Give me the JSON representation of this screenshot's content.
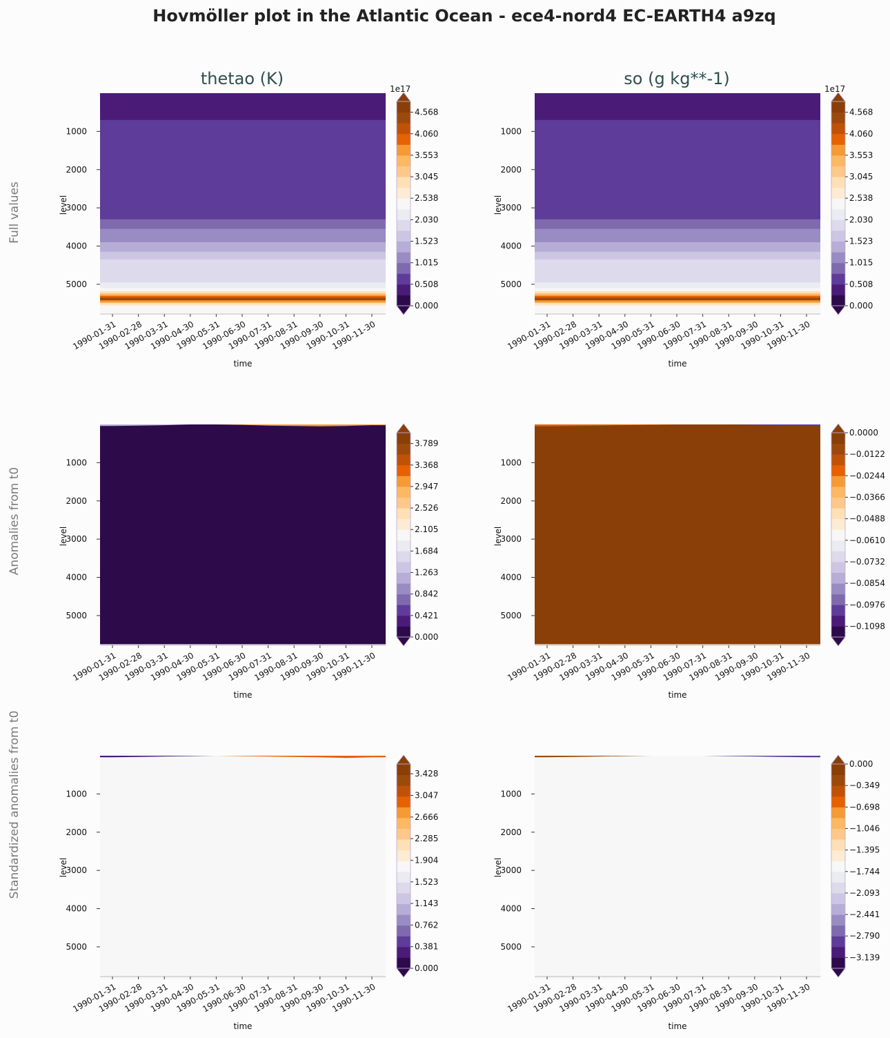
{
  "title": "Hovmöller plot in the Atlantic Ocean - ece4-nord4 EC-EARTH4 a9zq",
  "columns": [
    "thetao (K)",
    "so (g kg**-1)"
  ],
  "rows": [
    "Full values",
    "Anomalies from t0",
    "Standardized anomalies from t0"
  ],
  "colors": {
    "background": "#fcfcfc",
    "palette": [
      "#2d0a4a",
      "#4b1b78",
      "#5e3c99",
      "#7f6aae",
      "#988cc2",
      "#b6aed6",
      "#ccc6e3",
      "#dcdaeb",
      "#ebebf2",
      "#f7f7f7",
      "#fdebd3",
      "#fee0b6",
      "#fdc889",
      "#fdb863",
      "#f59a34",
      "#e66101",
      "#c05208",
      "#9c4a0c",
      "#8a3f08"
    ]
  },
  "chart_data": [
    {
      "type": "heatmap",
      "id": "thetao-full",
      "row": "Full values",
      "column": "thetao (K)",
      "title": "thetao (K)",
      "xlabel": "time",
      "ylabel": "level",
      "x": [
        "1990-01-31",
        "1990-02-28",
        "1990-03-31",
        "1990-04-30",
        "1990-05-31",
        "1990-06-30",
        "1990-07-31",
        "1990-08-31",
        "1990-09-30",
        "1990-10-31",
        "1990-11-30"
      ],
      "ylim": [
        5850,
        0
      ],
      "yticks": [
        "1000",
        "2000",
        "3000",
        "4000",
        "5000"
      ],
      "colorbar": {
        "offset_label": "1e17",
        "range": [
          0,
          4.822
        ],
        "tick_values": [
          0,
          0.508,
          1.015,
          1.523,
          2.03,
          2.538,
          3.045,
          3.553,
          4.06,
          4.568
        ],
        "ticks": [
          "0.000",
          "0.508",
          "1.015",
          "1.523",
          "2.030",
          "2.538",
          "3.045",
          "3.553",
          "4.060",
          "4.568"
        ]
      },
      "field": "bands",
      "data_max": 5750,
      "bands": [
        {
          "from": 0,
          "to": 700,
          "value": 0.35
        },
        {
          "from": 700,
          "to": 3300,
          "value": 0.7
        },
        {
          "from": 3300,
          "to": 3550,
          "value": 0.95
        },
        {
          "from": 3550,
          "to": 3900,
          "value": 1.15
        },
        {
          "from": 3900,
          "to": 4150,
          "value": 1.3
        },
        {
          "from": 4150,
          "to": 4350,
          "value": 1.55
        },
        {
          "from": 4350,
          "to": 4950,
          "value": 1.95
        },
        {
          "from": 4950,
          "to": 5100,
          "value": 2.2
        },
        {
          "from": 5100,
          "to": 5180,
          "value": 2.45
        },
        {
          "from": 5180,
          "to": 5240,
          "value": 2.8
        },
        {
          "from": 5240,
          "to": 5300,
          "value": 3.3
        },
        {
          "from": 5300,
          "to": 5350,
          "value": 3.9
        },
        {
          "from": 5350,
          "to": 5420,
          "value": 4.4
        },
        {
          "from": 5420,
          "to": 5480,
          "value": 3.6
        },
        {
          "from": 5480,
          "to": 5530,
          "value": 3.0
        },
        {
          "from": 5530,
          "to": 5560,
          "value": 2.6
        },
        {
          "from": 5560,
          "to": 5750,
          "value": 2.3
        }
      ]
    },
    {
      "type": "heatmap",
      "id": "so-full",
      "row": "Full values",
      "column": "so (g kg**-1)",
      "title": "so (g kg**-1)",
      "xlabel": "time",
      "ylabel": "level",
      "x": [
        "1990-01-31",
        "1990-02-28",
        "1990-03-31",
        "1990-04-30",
        "1990-05-31",
        "1990-06-30",
        "1990-07-31",
        "1990-08-31",
        "1990-09-30",
        "1990-10-31",
        "1990-11-30"
      ],
      "ylim": [
        5850,
        0
      ],
      "yticks": [
        "1000",
        "2000",
        "3000",
        "4000",
        "5000"
      ],
      "colorbar": {
        "offset_label": "1e17",
        "range": [
          0,
          4.822
        ],
        "tick_values": [
          0,
          0.508,
          1.015,
          1.523,
          2.03,
          2.538,
          3.045,
          3.553,
          4.06,
          4.568
        ],
        "ticks": [
          "0.000",
          "0.508",
          "1.015",
          "1.523",
          "2.030",
          "2.538",
          "3.045",
          "3.553",
          "4.060",
          "4.568"
        ]
      },
      "field": "bands",
      "data_max": 5750,
      "bands": [
        {
          "from": 0,
          "to": 700,
          "value": 0.3
        },
        {
          "from": 700,
          "to": 3300,
          "value": 0.7
        },
        {
          "from": 3300,
          "to": 3550,
          "value": 0.95
        },
        {
          "from": 3550,
          "to": 3900,
          "value": 1.15
        },
        {
          "from": 3900,
          "to": 4150,
          "value": 1.3
        },
        {
          "from": 4150,
          "to": 4350,
          "value": 1.55
        },
        {
          "from": 4350,
          "to": 4950,
          "value": 1.95
        },
        {
          "from": 4950,
          "to": 5100,
          "value": 2.2
        },
        {
          "from": 5100,
          "to": 5180,
          "value": 2.45
        },
        {
          "from": 5180,
          "to": 5240,
          "value": 2.8
        },
        {
          "from": 5240,
          "to": 5300,
          "value": 3.3
        },
        {
          "from": 5300,
          "to": 5350,
          "value": 3.9
        },
        {
          "from": 5350,
          "to": 5420,
          "value": 4.4
        },
        {
          "from": 5420,
          "to": 5480,
          "value": 3.6
        },
        {
          "from": 5480,
          "to": 5530,
          "value": 3.0
        },
        {
          "from": 5530,
          "to": 5560,
          "value": 2.6
        },
        {
          "from": 5560,
          "to": 5750,
          "value": 2.3
        }
      ]
    },
    {
      "type": "heatmap",
      "id": "thetao-anom",
      "row": "Anomalies from t0",
      "column": "thetao (K)",
      "xlabel": "time",
      "ylabel": "level",
      "x": [
        "1990-01-31",
        "1990-02-28",
        "1990-03-31",
        "1990-04-30",
        "1990-05-31",
        "1990-06-30",
        "1990-07-31",
        "1990-08-31",
        "1990-09-30",
        "1990-10-31",
        "1990-11-30"
      ],
      "ylim": [
        5850,
        0
      ],
      "yticks": [
        "1000",
        "2000",
        "3000",
        "4000",
        "5000"
      ],
      "colorbar": {
        "offset_label": "",
        "range": [
          0,
          4.0
        ],
        "tick_values": [
          0,
          0.421,
          0.842,
          1.263,
          1.684,
          2.105,
          2.526,
          2.947,
          3.368,
          3.789
        ],
        "ticks": [
          "0.000",
          "0.421",
          "0.842",
          "1.263",
          "1.684",
          "2.105",
          "2.526",
          "2.947",
          "3.368",
          "3.789"
        ]
      },
      "field": "uniform",
      "fill_value": 0.0,
      "data_max": 5750,
      "surface": [
        {
          "color_value": 1.2,
          "thickness": [
            40,
            30,
            20,
            0,
            0,
            0,
            0,
            0,
            0,
            0,
            0
          ]
        },
        {
          "color_value": 3.0,
          "thickness": [
            0,
            0,
            0,
            0,
            0,
            10,
            30,
            40,
            50,
            40,
            20
          ]
        }
      ]
    },
    {
      "type": "heatmap",
      "id": "so-anom",
      "row": "Anomalies from t0",
      "column": "so (g kg**-1)",
      "xlabel": "time",
      "ylabel": "level",
      "x": [
        "1990-01-31",
        "1990-02-28",
        "1990-03-31",
        "1990-04-30",
        "1990-05-31",
        "1990-06-30",
        "1990-07-31",
        "1990-08-31",
        "1990-09-30",
        "1990-10-31",
        "1990-11-30"
      ],
      "ylim": [
        5850,
        0
      ],
      "yticks": [
        "1000",
        "2000",
        "3000",
        "4000",
        "5000"
      ],
      "colorbar": {
        "offset_label": "",
        "range": [
          -0.1159,
          0.0
        ],
        "tick_values": [
          -0.1098,
          -0.0976,
          -0.0854,
          -0.0732,
          -0.061,
          -0.0488,
          -0.0366,
          -0.0244,
          -0.0122,
          0.0
        ],
        "ticks": [
          "−0.1098",
          "−0.0976",
          "−0.0854",
          "−0.0732",
          "−0.0610",
          "−0.0488",
          "−0.0366",
          "−0.0244",
          "−0.0122",
          "0.0000"
        ]
      },
      "field": "uniform",
      "fill_value": 0.0,
      "data_max": 5750,
      "surface": [
        {
          "color_value": -0.02,
          "thickness": [
            50,
            40,
            30,
            20,
            10,
            0,
            0,
            0,
            0,
            0,
            0
          ]
        },
        {
          "color_value": -0.1,
          "thickness": [
            0,
            0,
            0,
            0,
            0,
            0,
            0,
            0,
            10,
            30,
            40
          ]
        }
      ]
    },
    {
      "type": "heatmap",
      "id": "thetao-std",
      "row": "Standardized anomalies from t0",
      "column": "thetao (K)",
      "xlabel": "time",
      "ylabel": "level",
      "x": [
        "1990-01-31",
        "1990-02-28",
        "1990-03-31",
        "1990-04-30",
        "1990-05-31",
        "1990-06-30",
        "1990-07-31",
        "1990-08-31",
        "1990-09-30",
        "1990-10-31",
        "1990-11-30"
      ],
      "ylim": [
        5850,
        0
      ],
      "yticks": [
        "1000",
        "2000",
        "3000",
        "4000",
        "5000"
      ],
      "colorbar": {
        "offset_label": "",
        "range": [
          0,
          3.6
        ],
        "tick_values": [
          0,
          0.381,
          0.762,
          1.143,
          1.523,
          1.904,
          2.285,
          2.666,
          3.047,
          3.428
        ],
        "ticks": [
          "0.000",
          "0.381",
          "0.762",
          "1.143",
          "1.523",
          "1.904",
          "2.285",
          "2.666",
          "3.047",
          "3.428"
        ]
      },
      "field": "uniform",
      "fill_value": 1.8,
      "data_max": 5850,
      "surface": [
        {
          "color_value": 0.3,
          "thickness": [
            40,
            30,
            20,
            10,
            0,
            0,
            0,
            0,
            0,
            0,
            0
          ]
        },
        {
          "color_value": 2.9,
          "thickness": [
            0,
            0,
            0,
            0,
            0,
            10,
            20,
            30,
            40,
            60,
            40
          ]
        }
      ]
    },
    {
      "type": "heatmap",
      "id": "so-std",
      "row": "Standardized anomalies from t0",
      "column": "so (g kg**-1)",
      "xlabel": "time",
      "ylabel": "level",
      "x": [
        "1990-01-31",
        "1990-02-28",
        "1990-03-31",
        "1990-04-30",
        "1990-05-31",
        "1990-06-30",
        "1990-07-31",
        "1990-08-31",
        "1990-09-30",
        "1990-10-31",
        "1990-11-30"
      ],
      "ylim": [
        5850,
        0
      ],
      "yticks": [
        "1000",
        "2000",
        "3000",
        "4000",
        "5000"
      ],
      "colorbar": {
        "offset_label": "",
        "range": [
          -3.314,
          0.0
        ],
        "tick_values": [
          -3.139,
          -2.79,
          -2.441,
          -2.093,
          -1.744,
          -1.395,
          -1.046,
          -0.698,
          -0.349,
          0.0
        ],
        "ticks": [
          "−3.139",
          "−2.790",
          "−2.441",
          "−2.093",
          "−1.744",
          "−1.395",
          "−1.046",
          "−0.698",
          "−0.349",
          "0.000"
        ]
      },
      "field": "uniform",
      "fill_value": -1.6,
      "data_max": 5850,
      "surface": [
        {
          "color_value": -0.2,
          "thickness": [
            40,
            30,
            20,
            10,
            0,
            0,
            0,
            0,
            0,
            0,
            0
          ]
        },
        {
          "color_value": -2.9,
          "thickness": [
            0,
            0,
            0,
            0,
            0,
            0,
            0,
            10,
            20,
            30,
            40
          ]
        }
      ]
    }
  ]
}
